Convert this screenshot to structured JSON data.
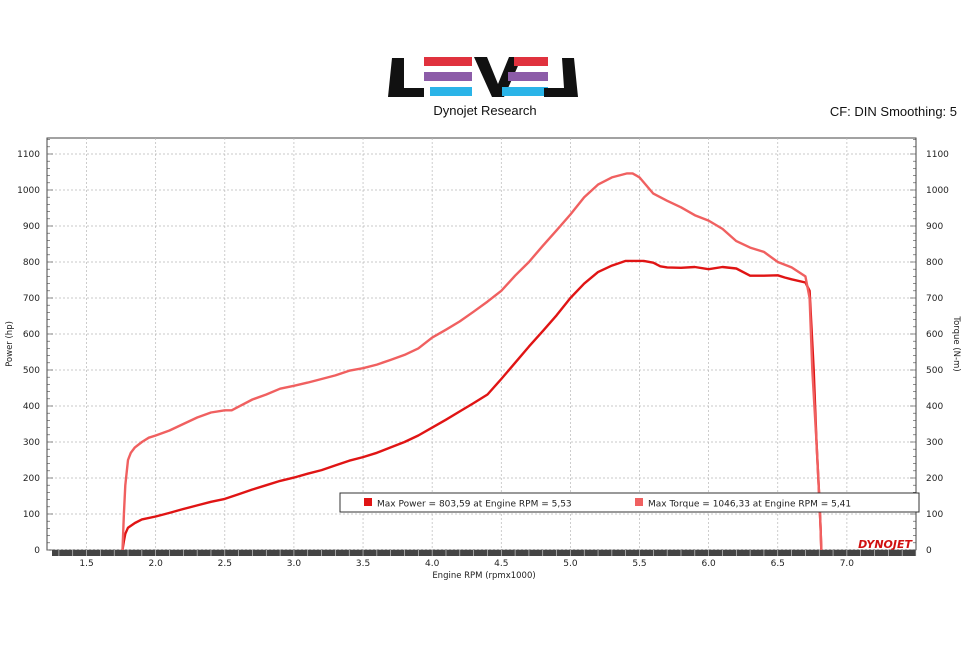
{
  "header": {
    "logo_text": "LEVEL",
    "company": "Dynojet Research",
    "settings": "CF: DIN Smoothing: 5",
    "brand_mark": "DYNOJET"
  },
  "colors": {
    "power": "#e01414",
    "torque": "#f06060",
    "logo_black": "#111111",
    "logo_red": "#e0323e",
    "logo_purple": "#8c5ca8",
    "logo_blue": "#2ab4e8",
    "grid": "#b8b8b8"
  },
  "chart_data": {
    "type": "line",
    "xlabel": "Engine RPM (rpmx1000)",
    "ylabel_left": "Power (hp)",
    "ylabel_right": "Torque (N-m)",
    "xlim": [
      1.25,
      7.5
    ],
    "ylim": [
      0,
      1150
    ],
    "x_ticks": [
      "1.5",
      "2.0",
      "2.5",
      "3.0",
      "3.5",
      "4.0",
      "4.5",
      "5.0",
      "5.5",
      "6.0",
      "6.5",
      "7.0"
    ],
    "y_ticks": [
      "0",
      "100",
      "200",
      "300",
      "400",
      "500",
      "600",
      "700",
      "800",
      "900",
      "1000",
      "1100"
    ],
    "grid": true,
    "legend": [
      "Max Power = 803,59 at Engine RPM = 5,53",
      "Max Torque = 1046,33 at Engine RPM = 5,41"
    ],
    "series": [
      {
        "name": "Power",
        "x": [
          1.76,
          1.77,
          1.78,
          1.8,
          1.85,
          1.9,
          2.0,
          2.1,
          2.2,
          2.3,
          2.4,
          2.5,
          2.6,
          2.7,
          2.8,
          2.9,
          3.0,
          3.1,
          3.2,
          3.3,
          3.4,
          3.5,
          3.6,
          3.7,
          3.8,
          3.9,
          4.0,
          4.1,
          4.2,
          4.3,
          4.4,
          4.5,
          4.6,
          4.7,
          4.8,
          4.9,
          5.0,
          5.1,
          5.2,
          5.3,
          5.4,
          5.45,
          5.53,
          5.6,
          5.65,
          5.7,
          5.8,
          5.9,
          6.0,
          6.1,
          6.2,
          6.3,
          6.4,
          6.5,
          6.55,
          6.6,
          6.7,
          6.73,
          6.76,
          6.78,
          6.8,
          6.81,
          6.815
        ],
        "y": [
          0,
          25,
          45,
          62,
          75,
          85,
          93,
          103,
          114,
          124,
          134,
          142,
          155,
          168,
          180,
          192,
          201,
          212,
          222,
          235,
          248,
          258,
          270,
          285,
          300,
          318,
          340,
          362,
          385,
          408,
          432,
          475,
          520,
          565,
          608,
          652,
          700,
          740,
          772,
          790,
          803,
          803,
          803,
          798,
          788,
          785,
          784,
          786,
          780,
          786,
          782,
          762,
          762,
          763,
          757,
          752,
          743,
          720,
          500,
          300,
          150,
          60,
          0
        ]
      },
      {
        "name": "Torque",
        "x": [
          1.76,
          1.77,
          1.78,
          1.8,
          1.82,
          1.85,
          1.9,
          1.95,
          2.0,
          2.1,
          2.2,
          2.3,
          2.4,
          2.5,
          2.55,
          2.6,
          2.7,
          2.8,
          2.9,
          3.0,
          3.1,
          3.2,
          3.3,
          3.4,
          3.5,
          3.6,
          3.7,
          3.8,
          3.9,
          4.0,
          4.1,
          4.2,
          4.3,
          4.4,
          4.5,
          4.6,
          4.7,
          4.8,
          4.9,
          5.0,
          5.1,
          5.2,
          5.3,
          5.41,
          5.45,
          5.5,
          5.6,
          5.7,
          5.8,
          5.9,
          6.0,
          6.1,
          6.2,
          6.3,
          6.4,
          6.5,
          6.6,
          6.7,
          6.73,
          6.75,
          6.78,
          6.8,
          6.81,
          6.815
        ],
        "y": [
          0,
          100,
          180,
          250,
          270,
          285,
          300,
          312,
          318,
          332,
          350,
          368,
          382,
          388,
          388,
          398,
          418,
          432,
          448,
          456,
          465,
          475,
          485,
          498,
          505,
          515,
          528,
          542,
          560,
          590,
          612,
          635,
          662,
          690,
          720,
          762,
          800,
          845,
          888,
          932,
          980,
          1015,
          1035,
          1046,
          1046,
          1035,
          990,
          970,
          952,
          930,
          915,
          892,
          858,
          840,
          828,
          800,
          785,
          760,
          700,
          500,
          300,
          150,
          60,
          0
        ]
      }
    ]
  }
}
